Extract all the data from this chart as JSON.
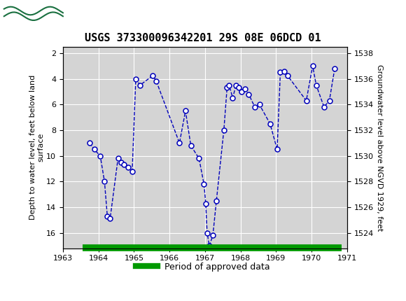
{
  "title": "USGS 373300096342201 29S 08E 06DCD 01",
  "ylabel_left": "Depth to water level, feet below land\nsurface",
  "ylabel_right": "Groundwater level above NGVD 1929, feet",
  "header_color": "#1a7040",
  "bg_color": "#ffffff",
  "plot_bg_color": "#d4d4d4",
  "grid_color": "#ffffff",
  "line_color": "#0000bb",
  "marker_facecolor": "#ffffff",
  "marker_edgecolor": "#0000bb",
  "legend_label": "Period of approved data",
  "legend_color": "#009900",
  "xlim": [
    1963,
    1971
  ],
  "ylim_left": [
    17.2,
    1.5
  ],
  "ylim_right": [
    1522.8,
    1538.5
  ],
  "xticks": [
    1963,
    1964,
    1965,
    1966,
    1967,
    1968,
    1969,
    1970,
    1971
  ],
  "yticks_left": [
    2,
    4,
    6,
    8,
    10,
    12,
    14,
    16
  ],
  "yticks_right": [
    1524,
    1526,
    1528,
    1530,
    1532,
    1534,
    1536,
    1538
  ],
  "data_x": [
    1963.75,
    1963.88,
    1964.05,
    1964.17,
    1964.25,
    1964.33,
    1964.55,
    1964.63,
    1964.72,
    1964.83,
    1964.95,
    1965.05,
    1965.17,
    1965.53,
    1965.63,
    1966.28,
    1966.45,
    1966.6,
    1966.83,
    1966.97,
    1967.02,
    1967.06,
    1967.12,
    1967.22,
    1967.32,
    1967.53,
    1967.62,
    1967.68,
    1967.78,
    1967.87,
    1967.95,
    1968.03,
    1968.13,
    1968.23,
    1968.4,
    1968.53,
    1968.83,
    1969.03,
    1969.12,
    1969.22,
    1969.32,
    1969.85,
    1970.03,
    1970.13,
    1970.35,
    1970.5,
    1970.65
  ],
  "data_y": [
    9.0,
    9.5,
    10.0,
    12.0,
    14.7,
    14.85,
    10.2,
    10.5,
    10.7,
    10.9,
    11.2,
    4.0,
    4.5,
    3.75,
    4.2,
    9.0,
    6.5,
    9.2,
    10.2,
    12.2,
    13.7,
    16.0,
    17.0,
    16.2,
    13.5,
    8.0,
    4.7,
    4.5,
    5.5,
    4.5,
    4.7,
    5.0,
    4.8,
    5.2,
    6.2,
    6.0,
    7.5,
    9.5,
    3.5,
    3.4,
    3.75,
    5.7,
    3.0,
    4.5,
    6.2,
    5.7,
    3.2
  ],
  "approved_x_start": 1963.55,
  "approved_x_end": 1970.85,
  "marker_size": 5,
  "linewidth": 1.0,
  "title_fontsize": 11,
  "tick_fontsize": 8,
  "label_fontsize": 8
}
